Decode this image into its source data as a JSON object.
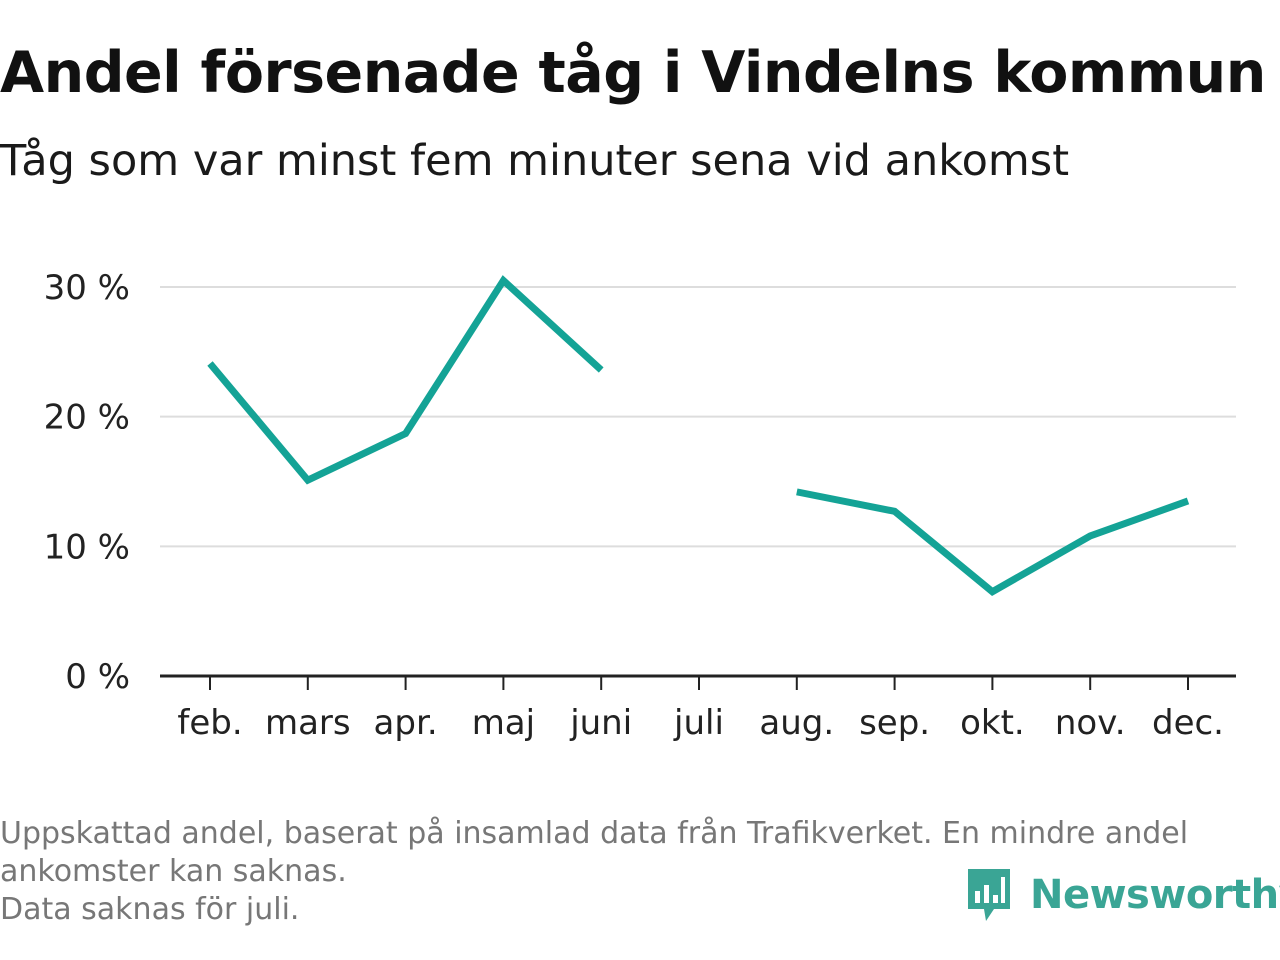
{
  "title": "Andel försenade tåg i Vindelns kommun",
  "subtitle": "Tåg som var minst fem minuter sena vid ankomst",
  "footnote": {
    "line1": "Uppskattad andel, baserat på insamlad data från Trafikverket. En mindre andel",
    "line2": "ankomster kan saknas.",
    "line3": "Data saknas för juli."
  },
  "brand": {
    "name": "Newsworthy",
    "icon": "bar-chart-speech-bubble-icon",
    "color": "#3aa595"
  },
  "chart_data": {
    "type": "line",
    "title": "Andel försenade tåg i Vindelns kommun",
    "subtitle": "Tåg som var minst fem minuter sena vid ankomst",
    "categories": [
      "feb.",
      "mars",
      "apr.",
      "maj",
      "juni",
      "juli",
      "aug.",
      "sep.",
      "okt.",
      "nov.",
      "dec."
    ],
    "series": [
      {
        "values": [
          24.1,
          15.1,
          18.7,
          30.5,
          23.6,
          null,
          14.2,
          12.7,
          6.5,
          10.8,
          13.5
        ],
        "color": "#14a396"
      }
    ],
    "yticks": [
      0,
      10,
      20,
      30
    ],
    "ytick_labels": [
      "0 %",
      "10 %",
      "20 %",
      "30 %"
    ],
    "ylim": [
      0,
      30.5
    ],
    "xlabel": "",
    "ylabel": "",
    "grid": true,
    "gridline_color": "#dddddd",
    "legend": "none"
  }
}
